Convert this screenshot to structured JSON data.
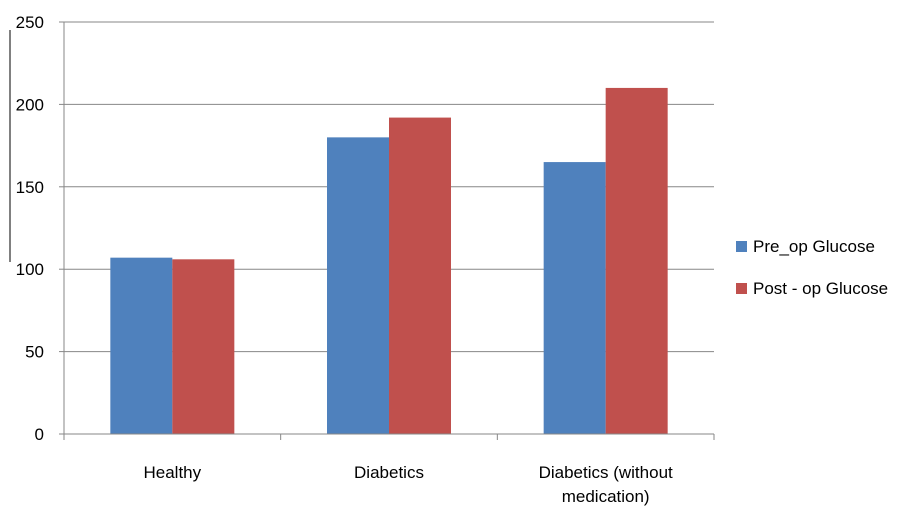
{
  "chart_data": {
    "type": "bar",
    "categories": [
      "Healthy",
      "Diabetics",
      "Diabetics (without medication)"
    ],
    "category_lines": [
      [
        "Healthy"
      ],
      [
        "Diabetics"
      ],
      [
        "Diabetics (without",
        "medication)"
      ]
    ],
    "series": [
      {
        "name": "Pre_op Glucose",
        "values": [
          107,
          180,
          165
        ],
        "color": "#4F81BD"
      },
      {
        "name": "Post - op Glucose",
        "values": [
          106,
          192,
          210
        ],
        "color": "#C0504D"
      }
    ],
    "yticks": [
      0,
      50,
      100,
      150,
      200,
      250
    ],
    "ylim": [
      0,
      250
    ],
    "grid": true,
    "legend_position": "right",
    "title": "",
    "xlabel": "",
    "ylabel": ""
  }
}
